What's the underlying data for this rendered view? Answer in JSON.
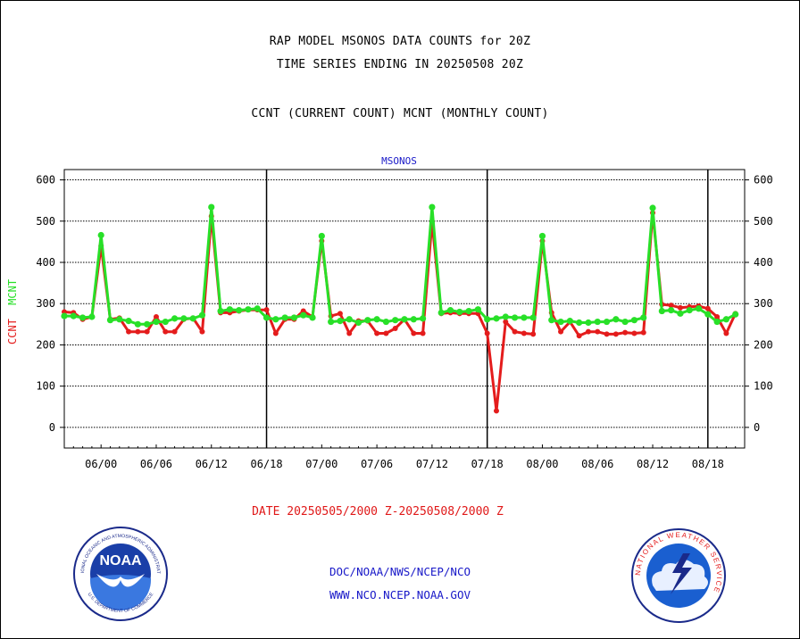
{
  "header": {
    "line1": "RAP MODEL MSONOS DATA COUNTS for 20Z",
    "line2": "TIME SERIES ENDING IN 20250508 20Z",
    "line3": "CCNT (CURRENT COUNT) MCNT (MONTHLY COUNT)"
  },
  "chart_data": {
    "type": "line",
    "title": "MSONOS",
    "ylabel_parts": [
      "CCNT",
      "MCNT"
    ],
    "x_tick_labels": [
      "06/00",
      "06/06",
      "06/12",
      "06/18",
      "07/00",
      "07/06",
      "07/12",
      "07/18",
      "08/00",
      "08/06",
      "08/12",
      "08/18"
    ],
    "x_range_hours": [
      -4,
      70
    ],
    "ylim": [
      -50,
      625
    ],
    "y_ticks": [
      0,
      100,
      200,
      300,
      400,
      500,
      600
    ],
    "day_boundaries_hours": [
      18,
      42,
      66
    ],
    "grid": true,
    "series": [
      {
        "name": "CCNT",
        "color": "#e41c1c",
        "x": [
          -4,
          -3,
          -2,
          -1,
          0,
          1,
          2,
          3,
          4,
          5,
          6,
          7,
          8,
          9,
          10,
          11,
          12,
          13,
          14,
          15,
          16,
          17,
          18,
          19,
          20,
          21,
          22,
          23,
          24,
          25,
          26,
          27,
          28,
          29,
          30,
          31,
          32,
          33,
          34,
          35,
          36,
          37,
          38,
          39,
          40,
          41,
          42,
          43,
          44,
          45,
          46,
          47,
          48,
          49,
          50,
          51,
          52,
          53,
          54,
          55,
          56,
          57,
          58,
          59,
          60,
          61,
          62,
          63,
          64,
          65,
          66,
          67,
          68,
          69
        ],
        "y": [
          280,
          278,
          262,
          268,
          440,
          262,
          265,
          232,
          232,
          232,
          268,
          232,
          232,
          262,
          265,
          232,
          512,
          278,
          278,
          282,
          285,
          285,
          285,
          228,
          262,
          262,
          282,
          268,
          452,
          270,
          276,
          228,
          258,
          258,
          228,
          228,
          240,
          262,
          228,
          228,
          498,
          276,
          278,
          276,
          276,
          276,
          228,
          40,
          256,
          232,
          228,
          226,
          452,
          278,
          232,
          256,
          222,
          232,
          232,
          226,
          226,
          230,
          228,
          230,
          520,
          298,
          296,
          290,
          292,
          294,
          288,
          268,
          228,
          276
        ]
      },
      {
        "name": "MCNT",
        "color": "#28e028",
        "x": [
          -4,
          -3,
          -2,
          -1,
          0,
          1,
          2,
          3,
          4,
          5,
          6,
          7,
          8,
          9,
          10,
          11,
          12,
          13,
          14,
          15,
          16,
          17,
          18,
          19,
          20,
          21,
          22,
          23,
          24,
          25,
          26,
          27,
          28,
          29,
          30,
          31,
          32,
          33,
          34,
          35,
          36,
          37,
          38,
          39,
          40,
          41,
          42,
          43,
          44,
          45,
          46,
          47,
          48,
          49,
          50,
          51,
          52,
          53,
          54,
          55,
          56,
          57,
          58,
          59,
          60,
          61,
          62,
          63,
          64,
          65,
          66,
          67,
          68,
          69
        ],
        "y": [
          270,
          270,
          266,
          268,
          466,
          260,
          262,
          258,
          250,
          250,
          256,
          256,
          264,
          264,
          264,
          272,
          534,
          282,
          286,
          284,
          286,
          288,
          266,
          262,
          266,
          266,
          272,
          266,
          464,
          256,
          258,
          262,
          254,
          260,
          262,
          256,
          260,
          262,
          262,
          264,
          534,
          278,
          284,
          280,
          282,
          286,
          262,
          264,
          268,
          266,
          266,
          266,
          464,
          260,
          256,
          258,
          254,
          254,
          256,
          256,
          262,
          256,
          260,
          266,
          532,
          282,
          284,
          276,
          284,
          288,
          274,
          256,
          262,
          274
        ]
      }
    ]
  },
  "footer": {
    "date_range": "DATE 20250505/2000 Z-20250508/2000 Z",
    "link1": "DOC/NOAA/NWS/NCEP/NCO",
    "link2": "WWW.NCO.NCEP.NOAA.GOV"
  },
  "logos": {
    "noaa_text": "NOAA",
    "noaa_ring_top": "NATIONAL OCEANIC AND ATMOSPHERIC ADMINISTRATION",
    "noaa_ring_bottom": "U.S. DEPARTMENT OF COMMERCE",
    "nws_ring": "NATIONAL WEATHER SERVICE"
  }
}
